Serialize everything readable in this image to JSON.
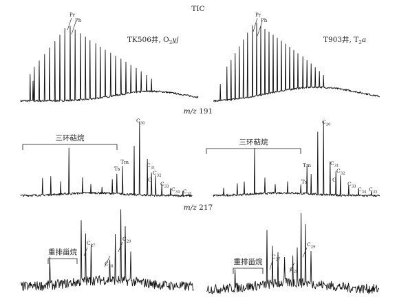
{
  "chart_data": [
    {
      "type": "line",
      "panel": "TIC",
      "title": "TIC",
      "charts": [
        {
          "well": "TK506井, O₂yj",
          "well_main": "TK506井, O",
          "well_sub": "2",
          "well_tail": "yj",
          "peak_labels": [
            {
              "text": "Pr"
            },
            {
              "text": "Ph"
            }
          ]
        },
        {
          "well": "T903井, T₂a",
          "well_main": "T903井, T",
          "well_sub": "2",
          "well_tail": "a",
          "peak_labels": [
            {
              "text": "Pr"
            },
            {
              "text": "Ph"
            }
          ]
        }
      ]
    },
    {
      "type": "line",
      "panel": "m/z 191",
      "title_italic": "m/z",
      "title_num": "191",
      "charts": [
        {
          "group_label": "三环萜烷",
          "peak_labels": [
            {
              "text": "C₃₀",
              "main": "C",
              "sub": "30"
            },
            {
              "text": "Tm",
              "main": "Tm",
              "sub": ""
            },
            {
              "text": "Ts",
              "main": "Ts",
              "sub": ""
            },
            {
              "text": "C₃₁",
              "main": "C",
              "sub": "31"
            },
            {
              "text": "C₃₂",
              "main": "C",
              "sub": "32"
            },
            {
              "text": "G",
              "main": "G",
              "sub": ""
            },
            {
              "text": "C₃₃",
              "main": "C",
              "sub": "33"
            },
            {
              "text": "C₃₄",
              "main": "C",
              "sub": "34"
            },
            {
              "text": "C₃₅",
              "main": "C",
              "sub": "35"
            }
          ]
        },
        {
          "group_label": "三环萜烷",
          "peak_labels": [
            {
              "text": "C₃₀",
              "main": "C",
              "sub": "30"
            },
            {
              "text": "Tm",
              "main": "Tm",
              "sub": ""
            },
            {
              "text": "Ts",
              "main": "Ts",
              "sub": ""
            },
            {
              "text": "C₃₁",
              "main": "C",
              "sub": "31"
            },
            {
              "text": "C₃₂",
              "main": "C",
              "sub": "32"
            },
            {
              "text": "G",
              "main": "G",
              "sub": ""
            },
            {
              "text": "C₃₃",
              "main": "C",
              "sub": "33"
            },
            {
              "text": "C₃₄",
              "main": "C",
              "sub": "34"
            },
            {
              "text": "C₃₅",
              "main": "C",
              "sub": "35"
            }
          ]
        }
      ]
    },
    {
      "type": "line",
      "panel": "m/z 217",
      "title_italic": "m/z",
      "title_num": "217",
      "charts": [
        {
          "group_label": "重排甾烷",
          "peak_labels": [
            {
              "text": "C₂₇",
              "main": "C",
              "sub": "27"
            },
            {
              "text": "C₂₈",
              "main": "C",
              "sub": "28"
            },
            {
              "text": "C₂₉",
              "main": "C",
              "sub": "29"
            }
          ]
        },
        {
          "group_label": "重排甾烷",
          "peak_labels": [
            {
              "text": "C₂₇",
              "main": "C",
              "sub": "27"
            },
            {
              "text": "C₂₈",
              "main": "C",
              "sub": "28"
            },
            {
              "text": "C₂₉",
              "main": "C",
              "sub": "29"
            }
          ]
        }
      ]
    }
  ]
}
